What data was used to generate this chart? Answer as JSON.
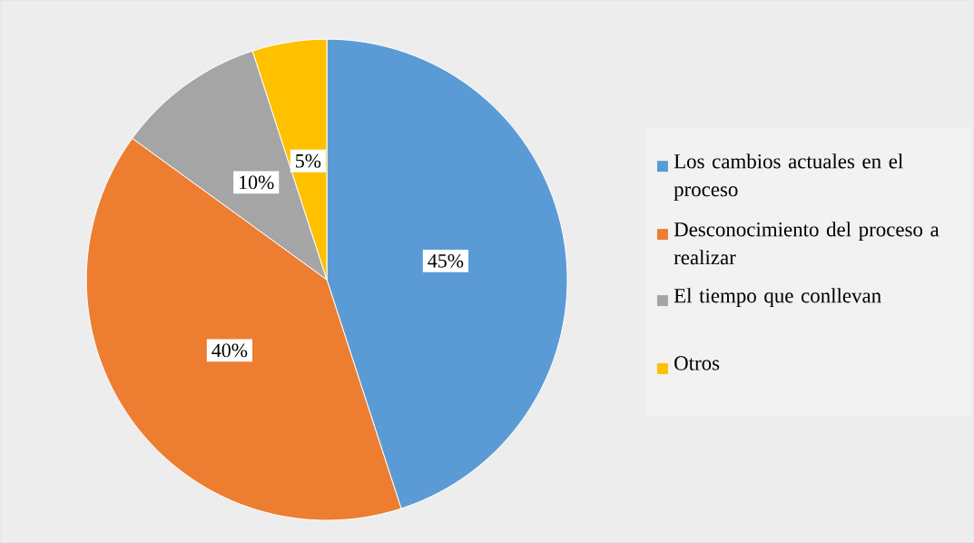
{
  "chart_data": {
    "type": "pie",
    "categories": [
      "Los cambios actuales en el proceso",
      "Desconocimiento del proceso a realizar",
      "El tiempo que conllevan",
      "Otros"
    ],
    "values": [
      45,
      40,
      10,
      5
    ],
    "colors": [
      "#5b9bd5",
      "#ed7d31",
      "#a5a5a5",
      "#ffc000"
    ],
    "value_labels": [
      "45%",
      "40%",
      "10%",
      "5%"
    ],
    "legend": "right"
  }
}
